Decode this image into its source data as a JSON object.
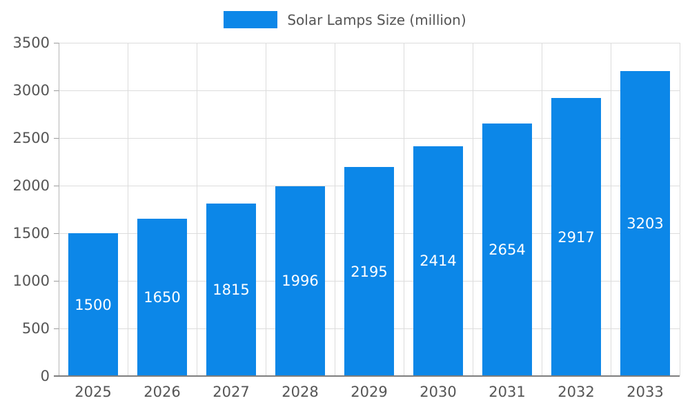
{
  "legend": {
    "label": "Solar Lamps Size (million)"
  },
  "colors": {
    "bar": "#0c87e8",
    "grid": "#dcdcdc",
    "axis": "#7d7d7d",
    "tick_text": "#555555",
    "value_label": "#ffffff"
  },
  "chart_data": {
    "type": "bar",
    "title": "Solar Lamps Size (million)",
    "categories": [
      "2025",
      "2026",
      "2027",
      "2028",
      "2029",
      "2030",
      "2031",
      "2032",
      "2033"
    ],
    "values": [
      1500,
      1650,
      1815,
      1996,
      2195,
      2414,
      2654,
      2917,
      3203
    ],
    "series": [
      {
        "name": "Solar Lamps Size (million)",
        "values": [
          1500,
          1650,
          1815,
          1996,
          2195,
          2414,
          2654,
          2917,
          3203
        ]
      }
    ],
    "xlabel": "",
    "ylabel": "",
    "ylim": [
      0,
      3500
    ],
    "ytick_step": 500,
    "yticks": [
      0,
      500,
      1000,
      1500,
      2000,
      2500,
      3000,
      3500
    ],
    "grid": true,
    "legend_position": "top",
    "value_labels": "inside-center"
  }
}
